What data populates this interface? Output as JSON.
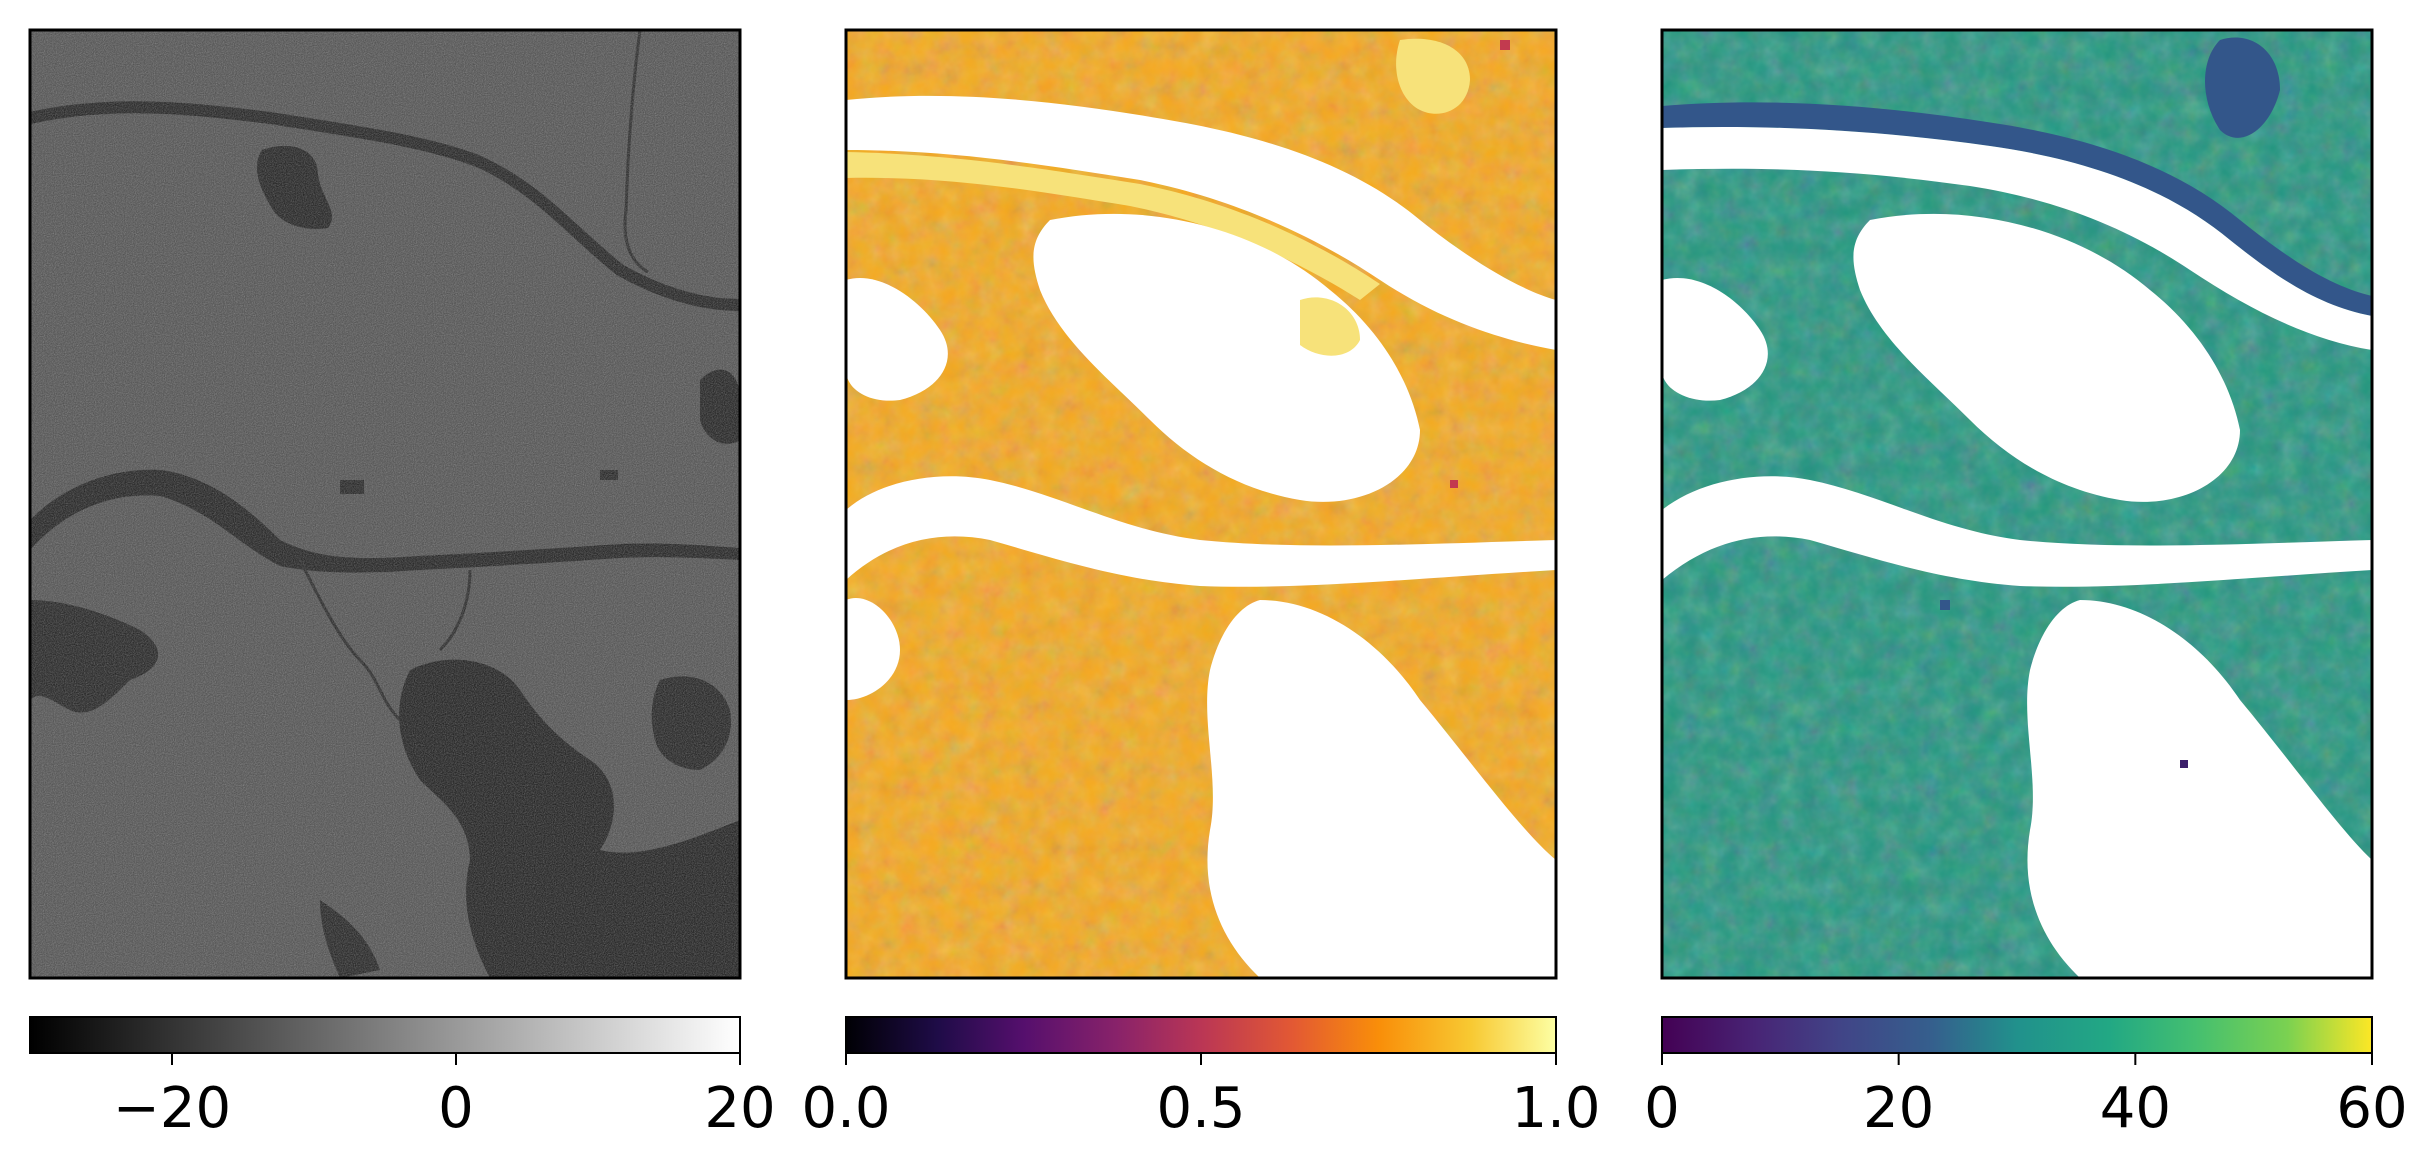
{
  "chart_data": [
    {
      "type": "heatmap",
      "colormap": "gray",
      "colorbar": {
        "range": [
          -30,
          20
        ],
        "ticks": [
          -20,
          0,
          20
        ],
        "tick_labels": [
          "−20",
          "0",
          "20"
        ]
      }
    },
    {
      "type": "heatmap",
      "colormap": "inferno",
      "colorbar": {
        "range": [
          0,
          1
        ],
        "ticks": [
          0,
          0.5,
          1
        ],
        "tick_labels": [
          "0.0",
          "0.5",
          "1.0"
        ]
      }
    },
    {
      "type": "heatmap",
      "colormap": "viridis",
      "colorbar": {
        "range": [
          0,
          60
        ],
        "ticks": [
          0,
          20,
          40,
          60
        ],
        "tick_labels": [
          "0",
          "20",
          "40",
          "60"
        ]
      }
    }
  ],
  "colors": {
    "gray_background": "#4a4a4a",
    "gray_water": "#151515",
    "inferno_background": "#f6a91c",
    "inferno_light": "#f7e27a",
    "viridis_background": "#22957f",
    "viridis_dark": "#33568a",
    "viridis_light": "#8fd14f",
    "nodata": "#ffffff",
    "frame": "#000000"
  }
}
